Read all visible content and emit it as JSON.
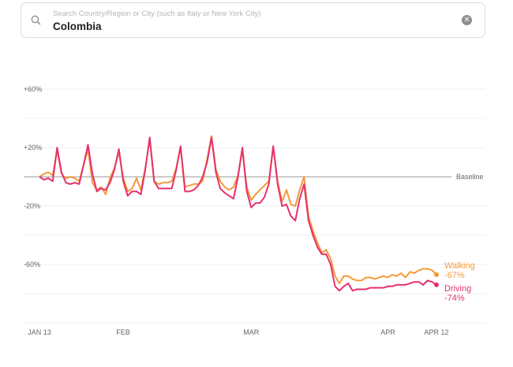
{
  "search": {
    "placeholder": "Search Country/Region or City (such as Italy or New York City)",
    "value": "Colombia",
    "icon": "search-icon",
    "clear_icon": "clear-icon"
  },
  "chart_data": {
    "type": "line",
    "title": "",
    "xlabel": "",
    "ylabel": "",
    "ylim": [
      -100,
      60
    ],
    "y_ticks": [
      {
        "v": 60,
        "label": "+60%"
      },
      {
        "v": 20,
        "label": "+20%"
      },
      {
        "v": -20,
        "label": "-20%"
      },
      {
        "v": -60,
        "label": "-60%"
      }
    ],
    "y_grid": [
      60,
      40,
      20,
      -20,
      -40,
      -60,
      -80,
      -100
    ],
    "baseline": {
      "value": 0,
      "label": "Baseline"
    },
    "x_start": "Jan 13",
    "x_days": 91,
    "x_ticks": [
      {
        "day": 0,
        "label": "JAN 13"
      },
      {
        "day": 19,
        "label": "FEB"
      },
      {
        "day": 48,
        "label": "MAR"
      },
      {
        "day": 79,
        "label": "APR"
      },
      {
        "day": 90,
        "label": "APR 12"
      }
    ],
    "series": [
      {
        "name": "Walking",
        "end_label": "-67%",
        "color": "#f5993a",
        "values": [
          0,
          2,
          3,
          1,
          18,
          2,
          -1,
          0,
          -1,
          -3,
          8,
          19,
          -4,
          -9,
          -7,
          -12,
          -1,
          6,
          17,
          -1,
          -10,
          -8,
          -1,
          -9,
          6,
          26,
          -3,
          -5,
          -4,
          -4,
          -3,
          6,
          20,
          -7,
          -6,
          -5,
          -5,
          -3,
          12,
          28,
          5,
          -3,
          -7,
          -9,
          -7,
          1,
          18,
          -7,
          -16,
          -12,
          -9,
          -6,
          -3,
          21,
          -3,
          -17,
          -9,
          -19,
          -20,
          -9,
          0,
          -27,
          -37,
          -45,
          -52,
          -50,
          -56,
          -68,
          -73,
          -68,
          -68,
          -70,
          -71,
          -71,
          -69,
          -69,
          -70,
          -69,
          -68,
          -69,
          -67,
          -68,
          -66,
          -69,
          -65,
          -66,
          -64,
          -63,
          -63,
          -64,
          -67
        ]
      },
      {
        "name": "Driving",
        "end_label": "-74%",
        "color": "#e5316b",
        "values": [
          0,
          -2,
          -1,
          -3,
          20,
          3,
          -4,
          -5,
          -4,
          -5,
          8,
          22,
          2,
          -10,
          -8,
          -9,
          -4,
          5,
          19,
          -3,
          -13,
          -10,
          -10,
          -12,
          5,
          27,
          -3,
          -8,
          -8,
          -8,
          -8,
          5,
          21,
          -10,
          -10,
          -9,
          -6,
          0,
          10,
          27,
          3,
          -8,
          -11,
          -13,
          -15,
          0,
          20,
          -10,
          -21,
          -18,
          -18,
          -14,
          -5,
          21,
          -5,
          -20,
          -19,
          -27,
          -30,
          -15,
          -5,
          -30,
          -40,
          -48,
          -53,
          -53,
          -60,
          -75,
          -78,
          -75,
          -73,
          -78,
          -77,
          -77,
          -77,
          -76,
          -76,
          -76,
          -76,
          -75,
          -75,
          -74,
          -74,
          -74,
          -73,
          -72,
          -72,
          -74,
          -71,
          -72,
          -74
        ]
      }
    ]
  }
}
